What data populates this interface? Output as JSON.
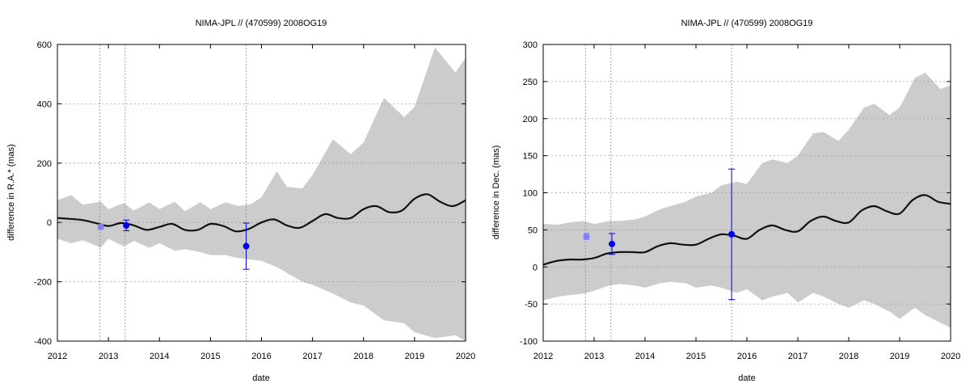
{
  "chart_data": [
    {
      "type": "line",
      "title": "NIMA-JPL // (470599) 2008OG19",
      "xlabel": "date",
      "ylabel": "difference in R.A.* (mas)",
      "xlim": [
        2012,
        2020
      ],
      "ylim": [
        -400,
        600
      ],
      "xticks": [
        "2012",
        "2013",
        "2014",
        "2015",
        "2016",
        "2017",
        "2018",
        "2019",
        "2020"
      ],
      "yticks": [
        "-400",
        "-200",
        "0",
        "200",
        "400",
        "600"
      ],
      "grid": true,
      "vlines": [
        2012.83,
        2013.33,
        2015.7
      ],
      "colors": {
        "band": "#cccccc",
        "line": "#111111",
        "obs": "#0000e6",
        "obs_faint": "#8080ff"
      },
      "band": {
        "x": [
          2012.0,
          2012.27,
          2012.5,
          2012.85,
          2013.0,
          2013.3,
          2013.5,
          2013.8,
          2014.0,
          2014.3,
          2014.5,
          2014.8,
          2015.0,
          2015.3,
          2015.55,
          2015.8,
          2016.0,
          2016.3,
          2016.5,
          2016.8,
          2017.0,
          2017.4,
          2017.75,
          2018.0,
          2018.4,
          2018.8,
          2019.0,
          2019.4,
          2019.8,
          2020.0
        ],
        "upper": [
          75,
          92,
          60,
          70,
          45,
          65,
          40,
          68,
          45,
          70,
          38,
          68,
          45,
          68,
          55,
          62,
          85,
          172,
          120,
          115,
          160,
          280,
          230,
          270,
          420,
          355,
          390,
          590,
          505,
          555
        ],
        "lower": [
          -55,
          -70,
          -60,
          -85,
          -55,
          -80,
          -62,
          -85,
          -70,
          -95,
          -90,
          -100,
          -110,
          -110,
          -120,
          -125,
          -130,
          -150,
          -170,
          -200,
          -210,
          -240,
          -270,
          -280,
          -330,
          -340,
          -370,
          -390,
          -380,
          -400
        ]
      },
      "nominal": {
        "x": [
          2012.0,
          2012.25,
          2012.5,
          2012.75,
          2013.0,
          2013.25,
          2013.5,
          2013.75,
          2014.0,
          2014.25,
          2014.5,
          2014.75,
          2015.0,
          2015.25,
          2015.5,
          2015.75,
          2016.0,
          2016.25,
          2016.5,
          2016.75,
          2017.0,
          2017.25,
          2017.5,
          2017.75,
          2018.0,
          2018.25,
          2018.5,
          2018.75,
          2019.0,
          2019.25,
          2019.5,
          2019.75,
          2020.0
        ],
        "y": [
          15,
          12,
          8,
          -2,
          -12,
          -2,
          -10,
          -25,
          -15,
          -5,
          -25,
          -25,
          -5,
          -12,
          -30,
          -22,
          0,
          10,
          -10,
          -18,
          5,
          28,
          15,
          15,
          45,
          55,
          35,
          40,
          80,
          95,
          70,
          55,
          75
        ]
      },
      "observations": [
        {
          "x": 2012.85,
          "y": -15,
          "err": 8,
          "style": "faint"
        },
        {
          "x": 2013.35,
          "y": -10,
          "err": 18,
          "style": "normal"
        },
        {
          "x": 2015.7,
          "y": -80,
          "err": 78,
          "style": "normal"
        }
      ]
    },
    {
      "type": "line",
      "title": "NIMA-JPL // (470599) 2008OG19",
      "xlabel": "date",
      "ylabel": "difference in Dec. (mas)",
      "xlim": [
        2012,
        2020
      ],
      "ylim": [
        -100,
        300
      ],
      "xticks": [
        "2012",
        "2013",
        "2014",
        "2015",
        "2016",
        "2017",
        "2018",
        "2019",
        "2020"
      ],
      "yticks": [
        "-100",
        "-50",
        "0",
        "50",
        "100",
        "150",
        "200",
        "250",
        "300"
      ],
      "grid": true,
      "vlines": [
        2012.83,
        2013.33,
        2015.7
      ],
      "colors": {
        "band": "#cccccc",
        "line": "#111111",
        "obs": "#0000e6",
        "obs_faint": "#8080ff"
      },
      "band": {
        "x": [
          2012.0,
          2012.3,
          2012.5,
          2012.8,
          2013.0,
          2013.3,
          2013.5,
          2013.8,
          2014.0,
          2014.3,
          2014.5,
          2014.8,
          2015.0,
          2015.3,
          2015.5,
          2015.8,
          2016.0,
          2016.3,
          2016.5,
          2016.8,
          2017.0,
          2017.3,
          2017.5,
          2017.8,
          2018.0,
          2018.3,
          2018.5,
          2018.8,
          2019.0,
          2019.3,
          2019.5,
          2019.8,
          2020.0
        ],
        "upper": [
          58,
          57,
          60,
          62,
          58,
          62,
          62,
          64,
          68,
          78,
          82,
          88,
          95,
          100,
          110,
          115,
          112,
          140,
          145,
          140,
          150,
          180,
          182,
          170,
          185,
          215,
          220,
          205,
          215,
          255,
          262,
          240,
          245
        ],
        "lower": [
          -45,
          -40,
          -38,
          -36,
          -32,
          -25,
          -23,
          -25,
          -28,
          -22,
          -20,
          -22,
          -28,
          -25,
          -28,
          -35,
          -30,
          -45,
          -40,
          -35,
          -48,
          -35,
          -40,
          -50,
          -55,
          -45,
          -50,
          -60,
          -70,
          -55,
          -65,
          -75,
          -82
        ]
      },
      "nominal": {
        "x": [
          2012.0,
          2012.25,
          2012.5,
          2012.75,
          2013.0,
          2013.25,
          2013.5,
          2013.75,
          2014.0,
          2014.25,
          2014.5,
          2014.75,
          2015.0,
          2015.25,
          2015.5,
          2015.75,
          2016.0,
          2016.25,
          2016.5,
          2016.75,
          2017.0,
          2017.25,
          2017.5,
          2017.75,
          2018.0,
          2018.25,
          2018.5,
          2018.75,
          2019.0,
          2019.25,
          2019.5,
          2019.75,
          2020.0
        ],
        "y": [
          3,
          8,
          10,
          10,
          12,
          18,
          20,
          20,
          20,
          28,
          32,
          30,
          30,
          38,
          44,
          42,
          38,
          50,
          56,
          50,
          48,
          62,
          68,
          62,
          60,
          76,
          82,
          75,
          72,
          90,
          97,
          88,
          85
        ]
      },
      "observations": [
        {
          "x": 2012.85,
          "y": 41,
          "err": 4,
          "style": "faint"
        },
        {
          "x": 2013.35,
          "y": 31,
          "err": 14,
          "style": "normal"
        },
        {
          "x": 2015.7,
          "y": 44,
          "err": 88,
          "style": "normal"
        }
      ]
    }
  ]
}
